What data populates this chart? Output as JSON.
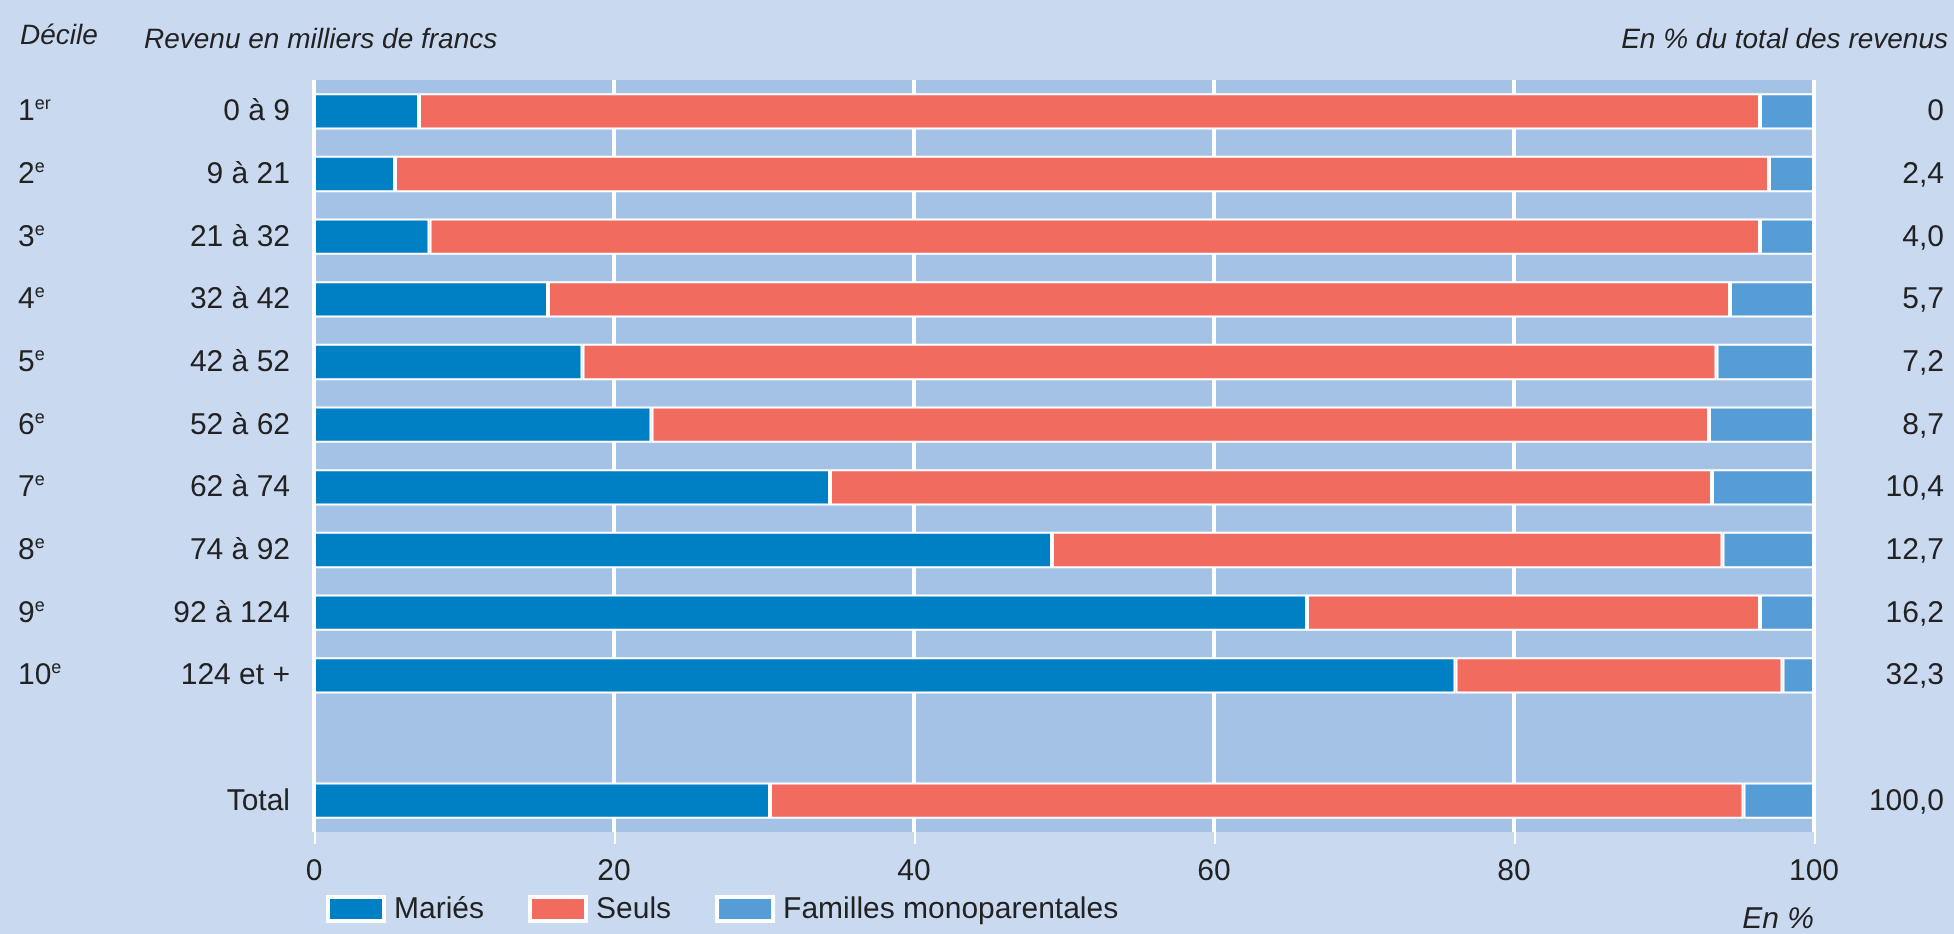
{
  "chart_data": {
    "type": "bar",
    "orientation": "horizontal",
    "stacked": true,
    "ylabel": "Revenu en milliers de francs",
    "y2label": "En % du total des revenus",
    "xlabel": "En %",
    "categories": [
      "0 à 9",
      "9 à 21",
      "21 à 32",
      "32 à 42",
      "42 à 52",
      "52 à 62",
      "62 à 74",
      "74 à 92",
      "92 à 124",
      "124 et +",
      null,
      "Total"
    ],
    "y2_categories": [
      "0",
      "2,4",
      "4,0",
      "5,7",
      "7,2",
      "8,7",
      "10,4",
      "12,7",
      "16,2",
      "32,3",
      null,
      "100,0"
    ],
    "annotations": [
      "Décile",
      "1$^{er}$",
      "2$^{e}$",
      "3$^{e}$",
      "4$^{e}$",
      "5$^{e}$",
      "6$^{e}$",
      "7$^{e}$",
      "8$^{e}$",
      "9$^{e}$",
      "10$^{e}$"
    ],
    "series": [
      {
        "name": "Mariés",
        "color": "#0080c4",
        "values": [
          7.0,
          5.4,
          7.7,
          15.6,
          17.9,
          22.5,
          34.4,
          49.2,
          66.2,
          76.1,
          null,
          30.4
        ]
      },
      {
        "name": "Seuls",
        "color": "#f26b5f",
        "values": [
          89.4,
          91.6,
          88.7,
          78.8,
          75.6,
          70.5,
          58.8,
          44.7,
          30.2,
          21.8,
          null,
          64.9
        ]
      },
      {
        "name": "Familles monoparentales",
        "color": "#559dd6",
        "values": [
          3.6,
          3.0,
          3.6,
          5.6,
          6.5,
          7.0,
          6.8,
          6.1,
          3.6,
          2.1,
          null,
          4.7
        ]
      }
    ],
    "xlim": [
      0,
      100
    ],
    "xticks": [
      0,
      20,
      40,
      60,
      80,
      100
    ],
    "grid": "x",
    "legend": "bottom left"
  }
}
